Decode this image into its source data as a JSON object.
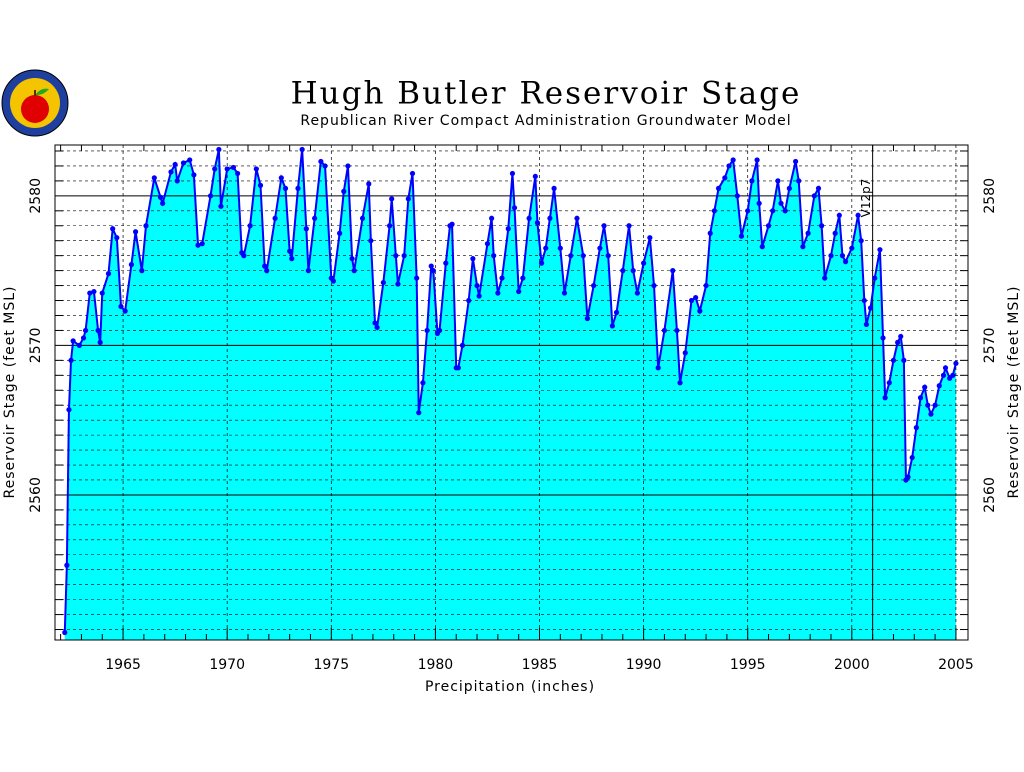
{
  "chart_data": {
    "type": "area",
    "title": "Hugh Butler Reservoir Stage",
    "subtitle": "Republican River Compact Administration Groundwater Model",
    "x_label": "Precipitation (inches)",
    "y_label": "Reservoir Stage (feet MSL)",
    "y2_label": "Reservoir Stage (feet MSL)",
    "annotation": {
      "text": "V12p7",
      "x": 2001.0
    },
    "line_color": "#0000ff",
    "fill_color": "#00ffff",
    "xlim": [
      1961.73,
      2005.58
    ],
    "ylim": [
      2550.3,
      2583.4
    ],
    "xticks": [
      1965,
      1970,
      1975,
      1980,
      1985,
      1990,
      1995,
      2000,
      2005
    ],
    "yticks": [
      2560,
      2570,
      2580
    ],
    "minor_xticks": [
      1962,
      1963,
      1964,
      1966,
      1967,
      1968,
      1969,
      1971,
      1972,
      1973,
      1974,
      1976,
      1977,
      1978,
      1979,
      1981,
      1982,
      1983,
      1984,
      1986,
      1987,
      1988,
      1989,
      1991,
      1992,
      1993,
      1994,
      1996,
      1997,
      1998,
      1999,
      2001,
      2002,
      2003,
      2004
    ],
    "minor_yticks": [
      2551,
      2552,
      2553,
      2554,
      2555,
      2556,
      2557,
      2558,
      2559,
      2561,
      2562,
      2563,
      2564,
      2565,
      2566,
      2567,
      2568,
      2569,
      2571,
      2572,
      2573,
      2574,
      2575,
      2576,
      2577,
      2578,
      2579,
      2581,
      2582,
      2583
    ],
    "grid": true,
    "x": [
      1962.2,
      1962.3,
      1962.4,
      1962.5,
      1962.6,
      1962.9,
      1963.1,
      1963.2,
      1963.4,
      1963.6,
      1963.8,
      1963.9,
      1964.0,
      1964.3,
      1964.5,
      1964.7,
      1964.9,
      1965.1,
      1965.4,
      1965.6,
      1965.9,
      1966.1,
      1966.5,
      1966.8,
      1966.9,
      1967.3,
      1967.5,
      1967.6,
      1967.9,
      1968.2,
      1968.4,
      1968.6,
      1968.8,
      1969.2,
      1969.4,
      1969.6,
      1969.7,
      1970.0,
      1970.3,
      1970.5,
      1970.7,
      1970.8,
      1971.1,
      1971.4,
      1971.6,
      1971.8,
      1971.9,
      1972.3,
      1972.6,
      1972.8,
      1973.0,
      1973.1,
      1973.4,
      1973.6,
      1973.8,
      1973.9,
      1974.2,
      1974.5,
      1974.7,
      1975.0,
      1975.1,
      1975.4,
      1975.6,
      1975.8,
      1976.0,
      1976.1,
      1976.5,
      1976.8,
      1976.9,
      1977.1,
      1977.2,
      1977.5,
      1977.8,
      1977.9,
      1978.1,
      1978.2,
      1978.5,
      1978.7,
      1978.9,
      1979.1,
      1979.2,
      1979.4,
      1979.6,
      1979.8,
      1979.9,
      1980.1,
      1980.2,
      1980.5,
      1980.7,
      1980.8,
      1981.0,
      1981.1,
      1981.3,
      1981.6,
      1981.8,
      1982.0,
      1982.1,
      1982.5,
      1982.7,
      1982.8,
      1983.0,
      1983.2,
      1983.5,
      1983.7,
      1983.8,
      1984.0,
      1984.2,
      1984.5,
      1984.8,
      1984.9,
      1985.1,
      1985.3,
      1985.5,
      1985.7,
      1986.0,
      1986.2,
      1986.5,
      1986.8,
      1987.1,
      1987.3,
      1987.6,
      1987.9,
      1988.1,
      1988.3,
      1988.5,
      1988.7,
      1989.0,
      1989.3,
      1989.5,
      1989.7,
      1990.0,
      1990.3,
      1990.5,
      1990.7,
      1991.0,
      1991.4,
      1991.6,
      1991.75,
      1992.0,
      1992.3,
      1992.5,
      1992.7,
      1993.0,
      1993.2,
      1993.4,
      1993.6,
      1993.9,
      1994.1,
      1994.3,
      1994.5,
      1994.7,
      1995.0,
      1995.2,
      1995.45,
      1995.55,
      1995.7,
      1996.0,
      1996.2,
      1996.45,
      1996.6,
      1996.8,
      1997.0,
      1997.3,
      1997.45,
      1997.65,
      1997.9,
      1998.2,
      1998.4,
      1998.55,
      1998.7,
      1999.0,
      1999.2,
      1999.4,
      1999.55,
      1999.7,
      2000.0,
      2000.3,
      2000.45,
      2000.6,
      2000.7,
      2000.9,
      2001.1,
      2001.35,
      2001.5,
      2001.6,
      2001.8,
      2002.0,
      2002.2,
      2002.35,
      2002.5,
      2002.6,
      2002.7,
      2002.9,
      2003.1,
      2003.3,
      2003.5,
      2003.65,
      2003.8,
      2004.0,
      2004.2,
      2004.4,
      2004.5,
      2004.7,
      2004.85,
      2005.0
    ],
    "values": [
      2550.8,
      2555.3,
      2565.7,
      2569,
      2570.3,
      2570,
      2570.5,
      2571,
      2573.5,
      2573.6,
      2571,
      2570.2,
      2573.5,
      2574.8,
      2577.8,
      2577.2,
      2572.6,
      2572.3,
      2575.4,
      2577.6,
      2575,
      2578,
      2581.2,
      2579.9,
      2579.5,
      2581.6,
      2582.1,
      2581,
      2582.2,
      2582.4,
      2581.4,
      2576.7,
      2576.8,
      2580,
      2581.8,
      2583.1,
      2579.3,
      2581.8,
      2581.9,
      2581.5,
      2576.2,
      2576,
      2578,
      2581.8,
      2580.7,
      2575.3,
      2575,
      2578.5,
      2581.2,
      2580.5,
      2576.3,
      2575.8,
      2580.5,
      2583.1,
      2577.8,
      2575,
      2578.5,
      2582.3,
      2582,
      2574.5,
      2574.3,
      2577.5,
      2580.3,
      2582,
      2575.8,
      2575,
      2578.5,
      2580.8,
      2577,
      2571.5,
      2571.2,
      2574.2,
      2578,
      2579.8,
      2576,
      2574.1,
      2576,
      2579.8,
      2581.5,
      2574.5,
      2565.5,
      2567.5,
      2571,
      2575.3,
      2575,
      2570.8,
      2571,
      2575.5,
      2578,
      2578.1,
      2568.5,
      2568.5,
      2570,
      2573,
      2575.8,
      2574,
      2573.3,
      2576.8,
      2578.5,
      2576,
      2573.5,
      2574.5,
      2577.8,
      2581.5,
      2579.2,
      2573.6,
      2574.5,
      2578.5,
      2581.3,
      2578.2,
      2575.5,
      2576.5,
      2578.5,
      2580.5,
      2576.5,
      2573.5,
      2576,
      2578.5,
      2576,
      2571.8,
      2574,
      2576.5,
      2578,
      2576,
      2571.3,
      2572.2,
      2575,
      2578,
      2575,
      2573.5,
      2575.5,
      2577.2,
      2574,
      2568.5,
      2571,
      2575,
      2571,
      2567.5,
      2569.5,
      2573,
      2573.2,
      2572.3,
      2574,
      2577.5,
      2579,
      2580.5,
      2581.2,
      2582,
      2582.4,
      2580,
      2577.3,
      2579,
      2581,
      2582.4,
      2579.5,
      2576.6,
      2578,
      2579,
      2581,
      2579.5,
      2579,
      2580.5,
      2582.3,
      2581,
      2576.6,
      2577.5,
      2580,
      2580.5,
      2578,
      2574.5,
      2576,
      2577.5,
      2578.7,
      2576,
      2575.6,
      2576.5,
      2578.7,
      2577,
      2573,
      2571.4,
      2572.5,
      2574.5,
      2576.4,
      2570.5,
      2566.5,
      2567.5,
      2569,
      2570.2,
      2570.6,
      2569,
      2561,
      2561.2,
      2562.5,
      2564.5,
      2566.5,
      2567.2,
      2566,
      2565.4,
      2566,
      2567.3,
      2568,
      2568.5,
      2567.8,
      2568,
      2568.8
    ]
  }
}
